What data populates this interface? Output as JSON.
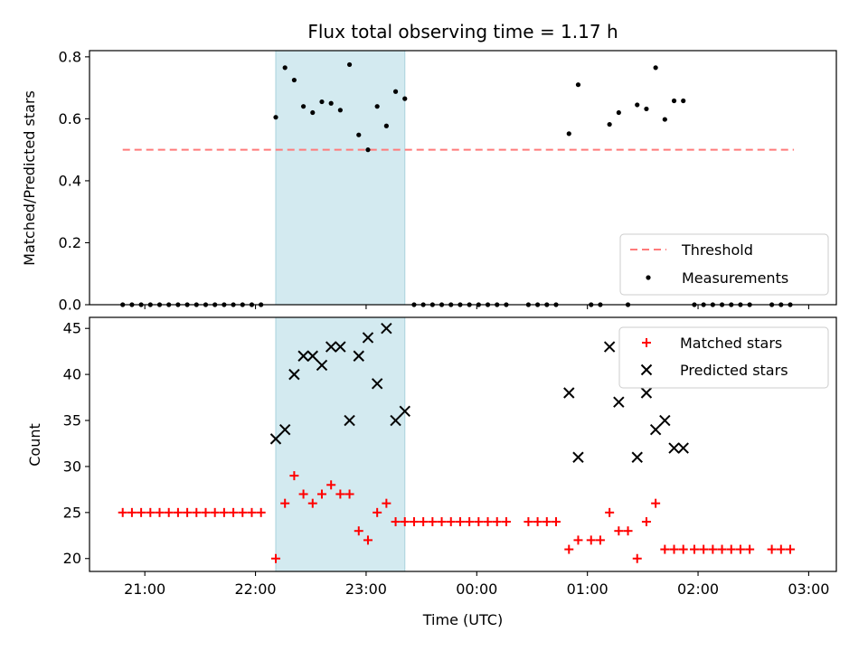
{
  "chart_data": [
    {
      "type": "scatter",
      "title": "Flux total observing time = 1.17 h",
      "ylabel": "Matched/Predicted stars",
      "xlim": [
        "20:30",
        "03:15"
      ],
      "ylim": [
        0,
        0.82
      ],
      "yticks": [
        "0.0",
        "0.2",
        "0.4",
        "0.6",
        "0.8"
      ],
      "highlight_span": [
        "22:11",
        "23:21"
      ],
      "highlight_color": "#d3eaf0",
      "threshold": {
        "name": "Threshold",
        "y": 0.5,
        "x_range": [
          "20:48",
          "02:52"
        ],
        "color": "#ff7a7a"
      },
      "legend": {
        "position": "lower-right",
        "entries": [
          "Threshold",
          "Measurements"
        ]
      },
      "series": [
        {
          "name": "Measurements",
          "color": "#000000",
          "points": [
            [
              "20:48",
              0
            ],
            [
              "20:53",
              0
            ],
            [
              "20:58",
              0
            ],
            [
              "21:03",
              0
            ],
            [
              "21:08",
              0
            ],
            [
              "21:13",
              0
            ],
            [
              "21:18",
              0
            ],
            [
              "21:23",
              0
            ],
            [
              "21:28",
              0
            ],
            [
              "21:33",
              0
            ],
            [
              "21:38",
              0
            ],
            [
              "21:43",
              0
            ],
            [
              "21:48",
              0
            ],
            [
              "21:53",
              0
            ],
            [
              "21:58",
              0
            ],
            [
              "22:03",
              0
            ],
            [
              "22:11",
              0.605
            ],
            [
              "22:16",
              0.765
            ],
            [
              "22:21",
              0.725
            ],
            [
              "22:26",
              0.64
            ],
            [
              "22:31",
              0.62
            ],
            [
              "22:36",
              0.655
            ],
            [
              "22:41",
              0.65
            ],
            [
              "22:46",
              0.628
            ],
            [
              "22:51",
              0.775
            ],
            [
              "22:56",
              0.548
            ],
            [
              "23:01",
              0.5
            ],
            [
              "23:06",
              0.64
            ],
            [
              "23:11",
              0.577
            ],
            [
              "23:16",
              0.688
            ],
            [
              "23:21",
              0.665
            ],
            [
              "23:26",
              0
            ],
            [
              "23:31",
              0
            ],
            [
              "23:36",
              0
            ],
            [
              "23:41",
              0
            ],
            [
              "23:46",
              0
            ],
            [
              "23:51",
              0
            ],
            [
              "23:56",
              0
            ],
            [
              "00:01",
              0
            ],
            [
              "00:06",
              0
            ],
            [
              "00:11",
              0
            ],
            [
              "00:16",
              0
            ],
            [
              "00:28",
              0
            ],
            [
              "00:33",
              0
            ],
            [
              "00:38",
              0
            ],
            [
              "00:43",
              0
            ],
            [
              "00:50",
              0.552
            ],
            [
              "00:55",
              0.71
            ],
            [
              "01:02",
              0
            ],
            [
              "01:07",
              0
            ],
            [
              "01:12",
              0.582
            ],
            [
              "01:17",
              0.62
            ],
            [
              "01:22",
              0
            ],
            [
              "01:27",
              0.645
            ],
            [
              "01:32",
              0.632
            ],
            [
              "01:37",
              0.765
            ],
            [
              "01:42",
              0.598
            ],
            [
              "01:47",
              0.658
            ],
            [
              "01:52",
              0.658
            ],
            [
              "01:58",
              0
            ],
            [
              "02:03",
              0
            ],
            [
              "02:08",
              0
            ],
            [
              "02:13",
              0
            ],
            [
              "02:18",
              0
            ],
            [
              "02:23",
              0
            ],
            [
              "02:28",
              0
            ],
            [
              "02:40",
              0
            ],
            [
              "02:45",
              0
            ],
            [
              "02:50",
              0
            ]
          ]
        }
      ]
    },
    {
      "type": "scatter",
      "xlabel": "Time (UTC)",
      "ylabel": "Count",
      "xlim": [
        "20:30",
        "03:15"
      ],
      "ylim": [
        18.6,
        46.2
      ],
      "yticks": [
        "20",
        "25",
        "30",
        "35",
        "40",
        "45"
      ],
      "xticks": [
        "21:00",
        "22:00",
        "23:00",
        "00:00",
        "01:00",
        "02:00",
        "03:00"
      ],
      "highlight_span": [
        "22:11",
        "23:21"
      ],
      "highlight_color": "#d3eaf0",
      "legend": {
        "position": "top-right",
        "entries": [
          "Matched stars",
          "Predicted stars"
        ]
      },
      "series": [
        {
          "name": "Matched stars",
          "color": "#ff0000",
          "marker": "plus",
          "points": [
            [
              "20:48",
              25
            ],
            [
              "20:53",
              25
            ],
            [
              "20:58",
              25
            ],
            [
              "21:03",
              25
            ],
            [
              "21:08",
              25
            ],
            [
              "21:13",
              25
            ],
            [
              "21:18",
              25
            ],
            [
              "21:23",
              25
            ],
            [
              "21:28",
              25
            ],
            [
              "21:33",
              25
            ],
            [
              "21:38",
              25
            ],
            [
              "21:43",
              25
            ],
            [
              "21:48",
              25
            ],
            [
              "21:53",
              25
            ],
            [
              "21:58",
              25
            ],
            [
              "22:03",
              25
            ],
            [
              "22:11",
              20
            ],
            [
              "22:16",
              26
            ],
            [
              "22:21",
              29
            ],
            [
              "22:26",
              27
            ],
            [
              "22:31",
              26
            ],
            [
              "22:36",
              27
            ],
            [
              "22:41",
              28
            ],
            [
              "22:46",
              27
            ],
            [
              "22:51",
              27
            ],
            [
              "22:56",
              23
            ],
            [
              "23:01",
              22
            ],
            [
              "23:06",
              25
            ],
            [
              "23:11",
              26
            ],
            [
              "23:16",
              24
            ],
            [
              "23:21",
              24
            ],
            [
              "23:26",
              24
            ],
            [
              "23:31",
              24
            ],
            [
              "23:36",
              24
            ],
            [
              "23:41",
              24
            ],
            [
              "23:46",
              24
            ],
            [
              "23:51",
              24
            ],
            [
              "23:56",
              24
            ],
            [
              "00:01",
              24
            ],
            [
              "00:06",
              24
            ],
            [
              "00:11",
              24
            ],
            [
              "00:16",
              24
            ],
            [
              "00:28",
              24
            ],
            [
              "00:33",
              24
            ],
            [
              "00:38",
              24
            ],
            [
              "00:43",
              24
            ],
            [
              "00:50",
              21
            ],
            [
              "00:55",
              22
            ],
            [
              "01:02",
              22
            ],
            [
              "01:07",
              22
            ],
            [
              "01:12",
              25
            ],
            [
              "01:17",
              23
            ],
            [
              "01:22",
              23
            ],
            [
              "01:27",
              20
            ],
            [
              "01:32",
              24
            ],
            [
              "01:37",
              26
            ],
            [
              "01:42",
              21
            ],
            [
              "01:47",
              21
            ],
            [
              "01:52",
              21
            ],
            [
              "01:58",
              21
            ],
            [
              "02:03",
              21
            ],
            [
              "02:08",
              21
            ],
            [
              "02:13",
              21
            ],
            [
              "02:18",
              21
            ],
            [
              "02:23",
              21
            ],
            [
              "02:28",
              21
            ],
            [
              "02:40",
              21
            ],
            [
              "02:45",
              21
            ],
            [
              "02:50",
              21
            ]
          ]
        },
        {
          "name": "Predicted stars",
          "color": "#000000",
          "marker": "x",
          "points": [
            [
              "22:11",
              33
            ],
            [
              "22:16",
              34
            ],
            [
              "22:21",
              40
            ],
            [
              "22:26",
              42
            ],
            [
              "22:31",
              42
            ],
            [
              "22:36",
              41
            ],
            [
              "22:41",
              43
            ],
            [
              "22:46",
              43
            ],
            [
              "22:51",
              35
            ],
            [
              "22:56",
              42
            ],
            [
              "23:01",
              44
            ],
            [
              "23:06",
              39
            ],
            [
              "23:11",
              45
            ],
            [
              "23:16",
              35
            ],
            [
              "23:21",
              36
            ],
            [
              "00:50",
              38
            ],
            [
              "00:55",
              31
            ],
            [
              "01:12",
              43
            ],
            [
              "01:17",
              37
            ],
            [
              "01:27",
              31
            ],
            [
              "01:32",
              38
            ],
            [
              "01:37",
              34
            ],
            [
              "01:42",
              35
            ],
            [
              "01:47",
              32
            ],
            [
              "01:52",
              32
            ]
          ]
        }
      ]
    }
  ]
}
